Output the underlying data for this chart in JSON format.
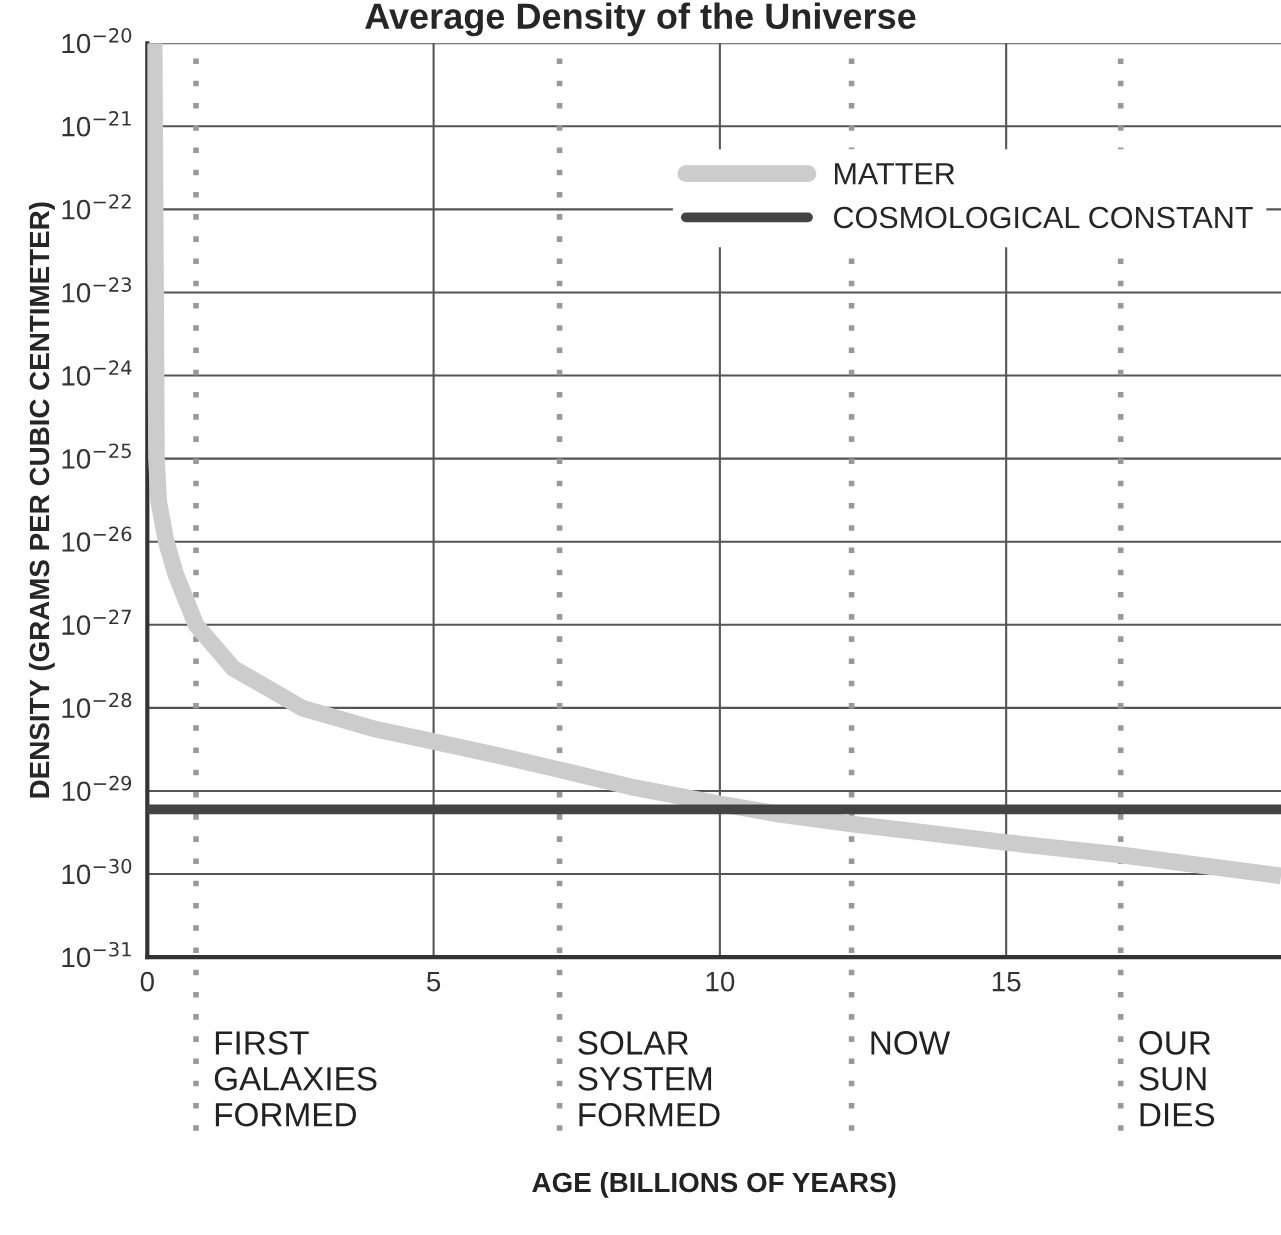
{
  "chart_data": {
    "type": "line",
    "title": "Average Density of the Universe",
    "annotations": [
      "AGE (BILLIONS OF YEARS)"
    ],
    "ylabel": "DENSITY (GRAMS PER CUBIC CENTIMETER)",
    "series": [
      {
        "name": "MATTER",
        "color": "#cccccc",
        "x": [
          0.12,
          0.16,
          0.2,
          0.33,
          0.5,
          0.85,
          1.5,
          2.7,
          4.0,
          4.95,
          6.0,
          7.2,
          8.5,
          10,
          11,
          12.3,
          13.5,
          15,
          17,
          19.8
        ],
        "values": [
          1e-20,
          1e-25,
          3e-26,
          1e-26,
          4e-27,
          1e-27,
          3e-28,
          1e-28,
          5.5e-29,
          4e-29,
          2.8e-29,
          1.8e-29,
          1.1e-29,
          7e-30,
          5.3e-30,
          4e-30,
          3.2e-30,
          2.4e-30,
          1.7e-30,
          9.5e-31
        ]
      },
      {
        "name": "COSMOLOGICAL CONSTANT",
        "color": "#444444",
        "x": [
          0,
          19.8
        ],
        "values": [
          6e-30,
          6e-30
        ]
      }
    ],
    "log": true,
    "xlim": [
      0,
      19.8
    ],
    "ylim": [
      1e-31,
      1e-20
    ],
    "xticks": [
      0,
      5,
      10,
      15
    ],
    "yticks": [
      {
        "value": 1e-20,
        "label": "10$^{−20}$"
      },
      {
        "value": 1e-21,
        "label": "10$^{−21}$"
      },
      {
        "value": 1e-22,
        "label": "10$^{−22}$"
      },
      {
        "value": 1e-23,
        "label": "10$^{−23}$"
      },
      {
        "value": 1e-24,
        "label": "10$^{−24}$"
      },
      {
        "value": 1e-25,
        "label": "10$^{−25}$"
      },
      {
        "value": 1e-26,
        "label": "10$^{−26}$"
      },
      {
        "value": 1e-27,
        "label": "10$^{−27}$"
      },
      {
        "value": 1e-28,
        "label": "10$^{−28}$"
      },
      {
        "value": 1e-29,
        "label": "10$^{−29}$"
      },
      {
        "value": 1e-30,
        "label": "10$^{−30}$"
      },
      {
        "value": 1e-31,
        "label": "10$^{−31}$"
      }
    ],
    "ref_lines": [
      {
        "axis": "x",
        "value": 0.85,
        "label": "FIRST\nGALAXIES\nFORMED",
        "color": "#999999",
        "line_style": "dotted"
      },
      {
        "axis": "x",
        "value": 7.2,
        "label": "SOLAR\nSYSTEM\nFORMED",
        "color": "#999999",
        "line_style": "dotted"
      },
      {
        "axis": "x",
        "value": 12.3,
        "label": "NOW",
        "color": "#999999",
        "line_style": "dotted"
      },
      {
        "axis": "x",
        "value": 17.0,
        "label": "OUR\nSUN\nDIES",
        "color": "#999999",
        "line_style": "dotted"
      }
    ],
    "grid": true,
    "legend": "top right"
  }
}
